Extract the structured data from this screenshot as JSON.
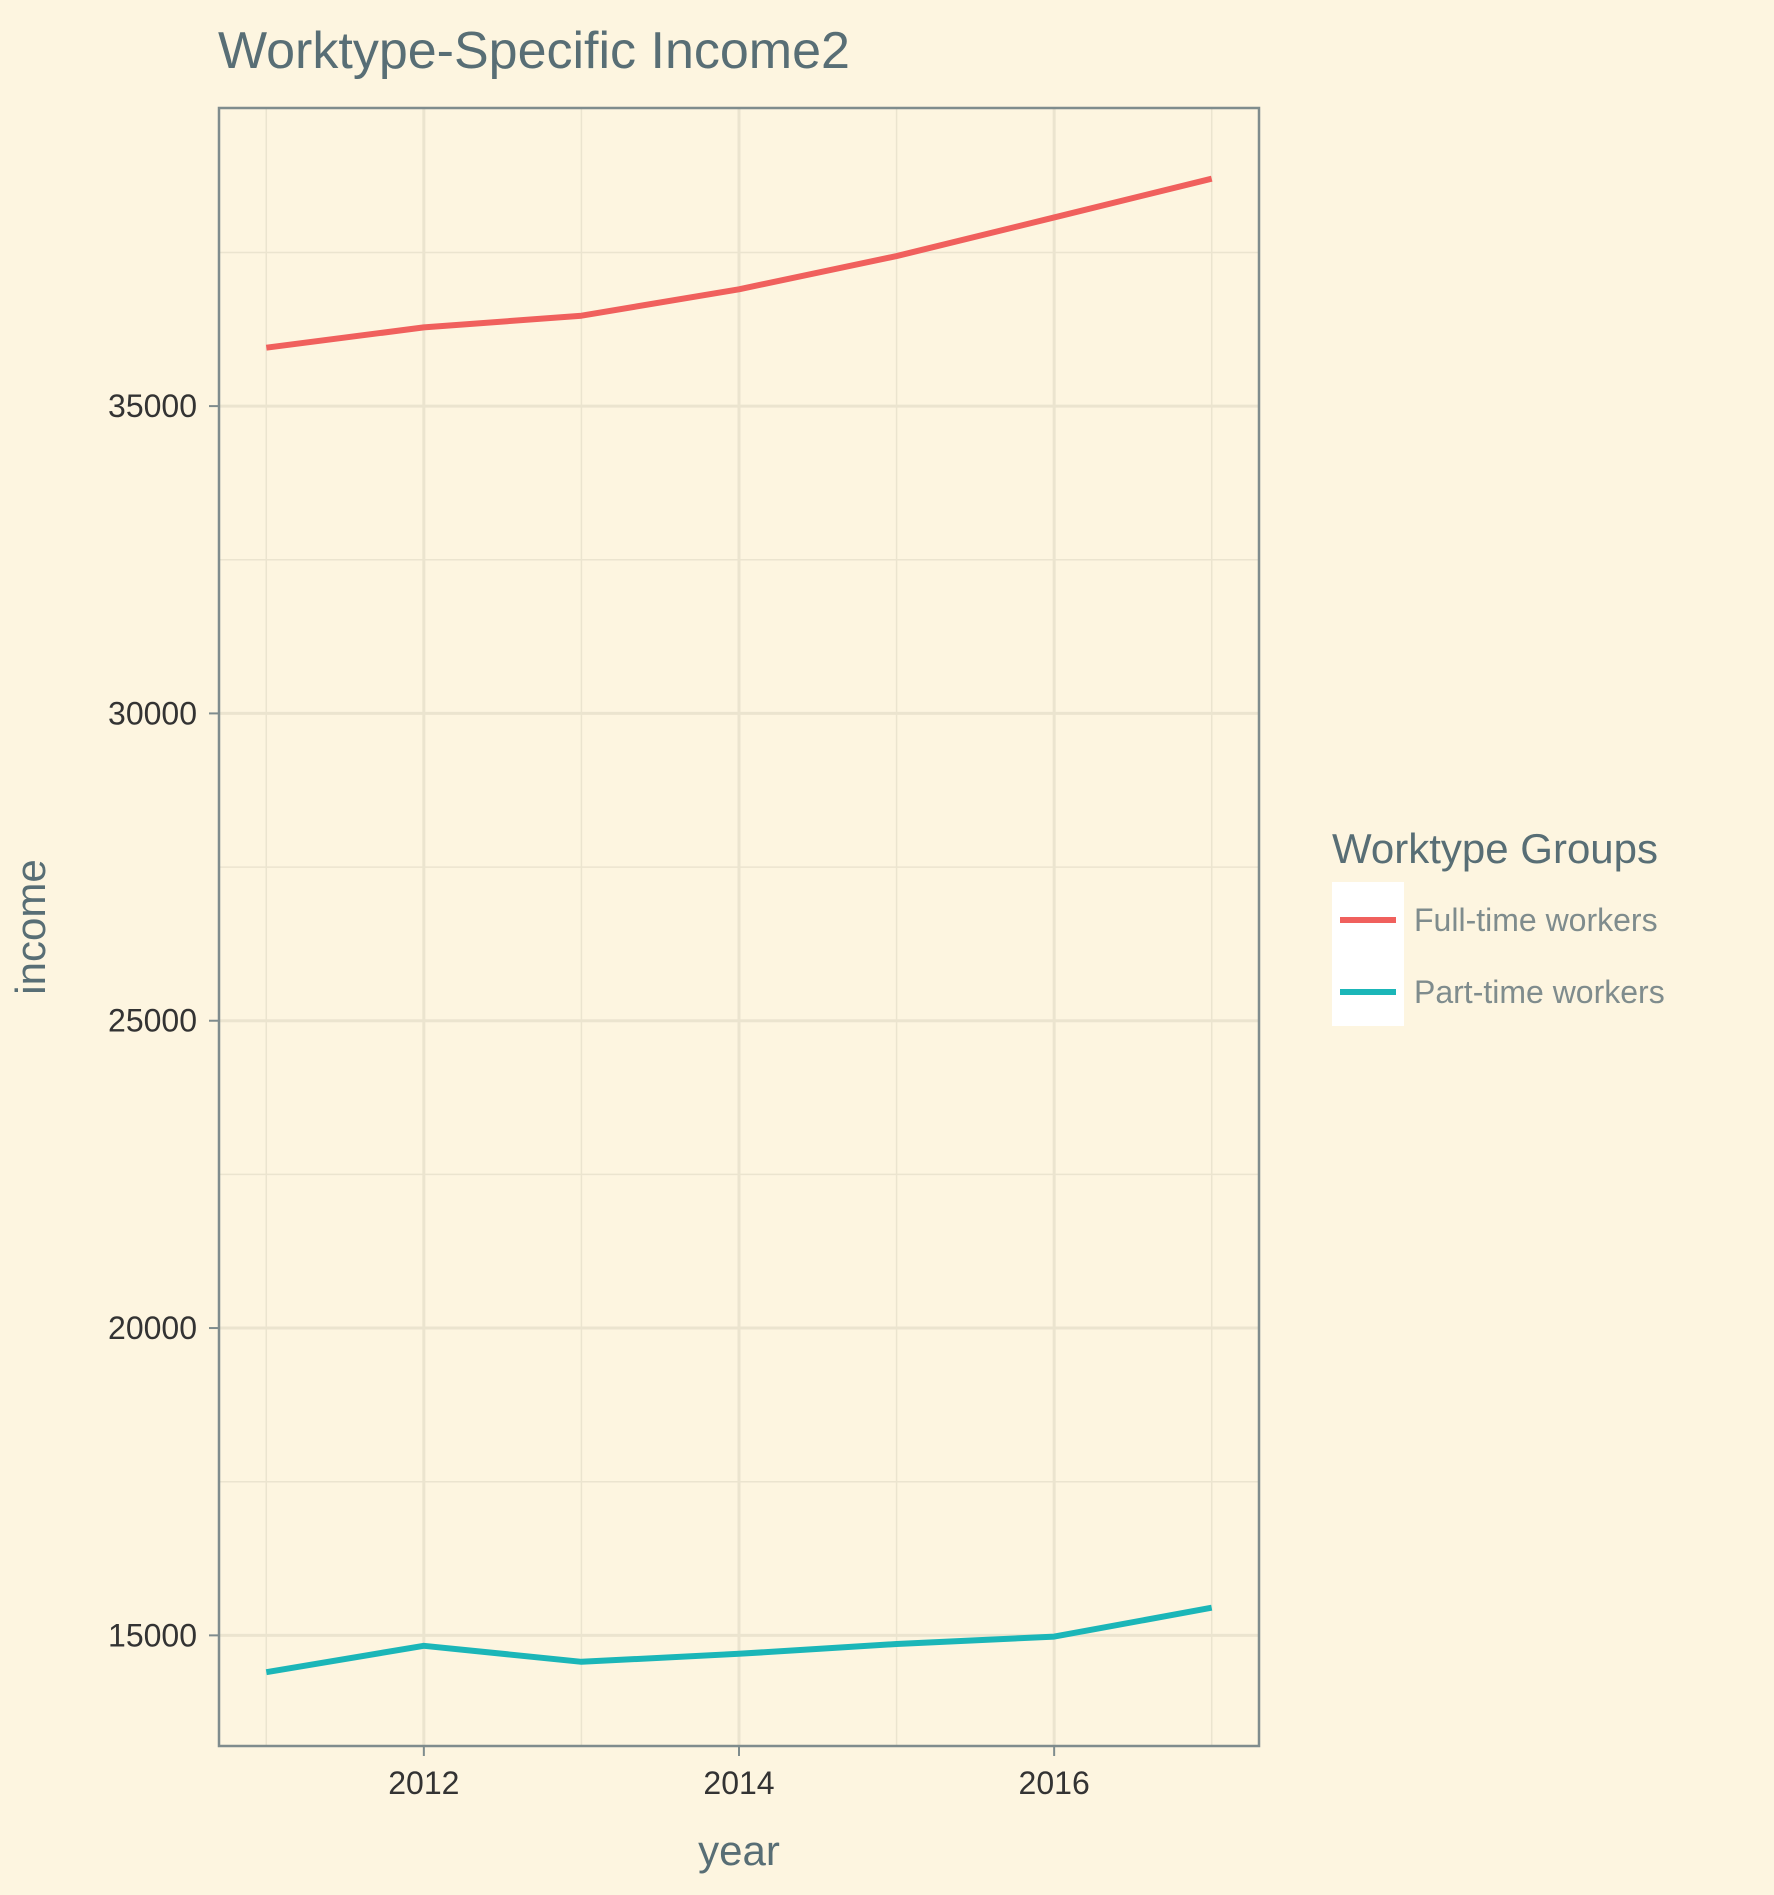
{
  "chart_data": {
    "type": "line",
    "title": "Worktype-Specific Income2",
    "xlabel": "year",
    "ylabel": "income",
    "x": [
      2011,
      2012,
      2013,
      2014,
      2015,
      2016,
      2017
    ],
    "x_ticks": [
      2012,
      2014,
      2016
    ],
    "y_ticks": [
      15000,
      20000,
      25000,
      30000,
      35000
    ],
    "xlim": [
      2010.7,
      2017.3
    ],
    "ylim": [
      13200,
      39850
    ],
    "grid": true,
    "legend": {
      "title": "Worktype Groups",
      "placement": "right"
    },
    "series": [
      {
        "name": "Full-time workers",
        "color": "#f0605d",
        "values": [
          35950,
          36280,
          36470,
          36900,
          37440,
          38070,
          38700
        ]
      },
      {
        "name": "Part-time workers",
        "color": "#1bb6b8",
        "values": [
          14400,
          14830,
          14570,
          14700,
          14860,
          14980,
          15450
        ]
      }
    ],
    "colors": {
      "background": "#fdf5e0",
      "grid": "#ebe4cf",
      "axis": "#7f8c8d",
      "title": "#586e75",
      "legend_text": "#7f8c8d"
    }
  }
}
